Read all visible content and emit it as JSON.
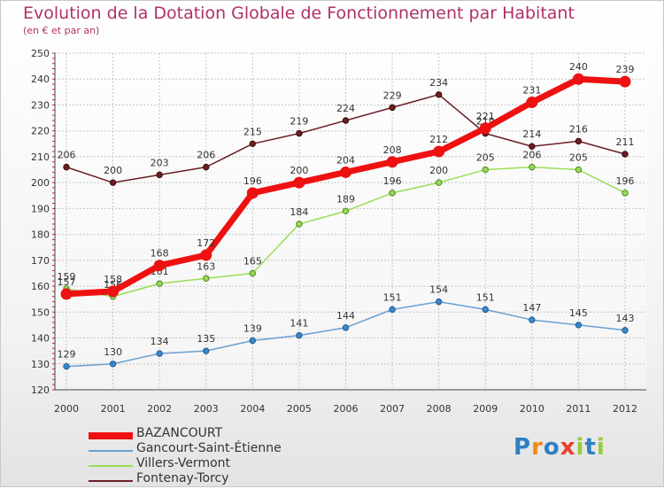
{
  "header": {
    "title": "Evolution de la Dotation Globale de Fonctionnement par Habitant",
    "subtitle": "(en € et par an)"
  },
  "logo": {
    "text": "Proxiti"
  },
  "chart_data": {
    "type": "line",
    "title": "Evolution de la Dotation Globale de Fonctionnement par Habitant",
    "subtitle": "(en € et par an)",
    "xlabel": "",
    "ylabel": "",
    "x": [
      "2000",
      "2001",
      "2002",
      "2003",
      "2004",
      "2005",
      "2006",
      "2007",
      "2008",
      "2009",
      "2010",
      "2011",
      "2012"
    ],
    "ylim": [
      120,
      250
    ],
    "yticks": [
      120,
      130,
      140,
      150,
      160,
      170,
      180,
      190,
      200,
      210,
      220,
      230,
      240,
      250
    ],
    "grid": true,
    "legend_position": "bottom-left",
    "series": [
      {
        "name": "Fontenay-Torcy",
        "color": "#6b1f24",
        "values": [
          206,
          200,
          203,
          206,
          215,
          219,
          224,
          229,
          234,
          219,
          214,
          216,
          211
        ]
      },
      {
        "name": "Villers-Vermont",
        "color": "#99dd55",
        "values": [
          159,
          156,
          161,
          163,
          165,
          184,
          189,
          196,
          200,
          205,
          206,
          205,
          196
        ]
      },
      {
        "name": "Gancourt-Saint-Étienne",
        "color": "#6a9fd4",
        "values": [
          129,
          130,
          134,
          135,
          139,
          141,
          144,
          151,
          154,
          151,
          147,
          145,
          143
        ]
      },
      {
        "name": "BAZANCOURT",
        "color": "#ee1111",
        "values": [
          157,
          158,
          168,
          172,
          196,
          200,
          204,
          208,
          212,
          221,
          231,
          240,
          239
        ]
      }
    ]
  },
  "legend": [
    {
      "name": "BAZANCOURT",
      "color": "#ee1111"
    },
    {
      "name": "Gancourt-Saint-Étienne",
      "color": "#6a9fd4"
    },
    {
      "name": "Villers-Vermont",
      "color": "#99dd55"
    },
    {
      "name": "Fontenay-Torcy",
      "color": "#6b1f24"
    }
  ]
}
